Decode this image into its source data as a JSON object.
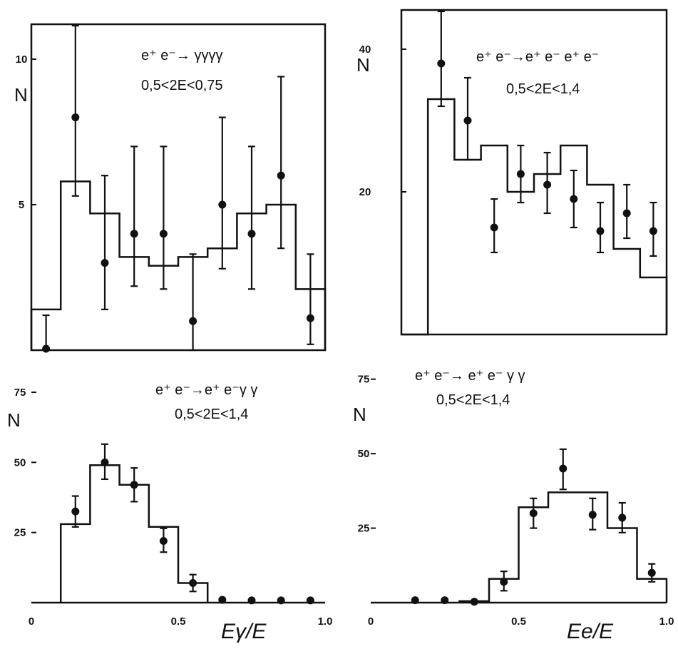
{
  "chart_data": [
    {
      "type": "histogram",
      "panel": "top-left",
      "ylabel": "N",
      "annotation": [
        "e⁺ e⁻→ γγγγ",
        "0,5<2E<0,75"
      ],
      "xlim": [
        0,
        1.0
      ],
      "ylim": [
        0,
        11.2
      ],
      "yticks": [
        {
          "v": 5,
          "label": "5"
        },
        {
          "v": 10,
          "label": "10"
        }
      ],
      "hist_edges": [
        0,
        0.1,
        0.2,
        0.3,
        0.4,
        0.5,
        0.6,
        0.7,
        0.8,
        0.9,
        1.0
      ],
      "hist_heights": [
        1.4,
        5.8,
        4.7,
        3.2,
        2.9,
        3.2,
        3.5,
        4.7,
        5.0,
        2.1
      ],
      "points": [
        {
          "x": 0.05,
          "y": 0.05,
          "lo": 0.0,
          "hi": 1.2
        },
        {
          "x": 0.15,
          "y": 8.0,
          "lo": 5.3,
          "hi": 11.2
        },
        {
          "x": 0.25,
          "y": 3.0,
          "lo": 1.4,
          "hi": 6.0
        },
        {
          "x": 0.35,
          "y": 4.0,
          "lo": 2.2,
          "hi": 7.0
        },
        {
          "x": 0.45,
          "y": 4.0,
          "lo": 2.1,
          "hi": 7.0
        },
        {
          "x": 0.55,
          "y": 1.0,
          "lo": 0.0,
          "hi": 3.3
        },
        {
          "x": 0.65,
          "y": 5.0,
          "lo": 2.8,
          "hi": 8.0
        },
        {
          "x": 0.75,
          "y": 4.0,
          "lo": 2.1,
          "hi": 7.0
        },
        {
          "x": 0.85,
          "y": 6.0,
          "lo": 3.5,
          "hi": 9.4
        },
        {
          "x": 0.95,
          "y": 1.1,
          "lo": 0.2,
          "hi": 3.3
        }
      ]
    },
    {
      "type": "histogram",
      "panel": "top-right",
      "ylabel": "N",
      "annotation": [
        "e⁺ e⁻→e⁺ e⁻ e⁺ e⁻",
        "0,5<2E<1,4"
      ],
      "xlim": [
        0,
        1.0
      ],
      "ylim": [
        0,
        45.5
      ],
      "yticks": [
        {
          "v": 20,
          "label": "20"
        },
        {
          "v": 40,
          "label": "40"
        }
      ],
      "hist_edges": [
        0,
        0.1,
        0.2,
        0.3,
        0.4,
        0.5,
        0.6,
        0.7,
        0.8,
        0.9,
        1.0
      ],
      "hist_edges_note": "",
      "hist_heights": [
        0,
        33.0,
        24.5,
        26.5,
        20.0,
        22.5,
        26.5,
        21.0,
        12.0,
        8.0
      ],
      "points": [
        {
          "x": 0.15,
          "y": 38.0,
          "lo": 32.0,
          "hi": 45.5
        },
        {
          "x": 0.25,
          "y": 30.0,
          "lo": 24.5,
          "hi": 36.0
        },
        {
          "x": 0.35,
          "y": 15.0,
          "lo": 11.5,
          "hi": 19.0
        },
        {
          "x": 0.45,
          "y": 22.5,
          "lo": 18.5,
          "hi": 26.5
        },
        {
          "x": 0.55,
          "y": 21.0,
          "lo": 17.0,
          "hi": 25.5
        },
        {
          "x": 0.65,
          "y": 19.0,
          "lo": 15.0,
          "hi": 23.0
        },
        {
          "x": 0.75,
          "y": 14.5,
          "lo": 11.5,
          "hi": 18.5
        },
        {
          "x": 0.85,
          "y": 17.0,
          "lo": 13.5,
          "hi": 21.0
        },
        {
          "x": 0.95,
          "y": 14.5,
          "lo": 11.0,
          "hi": 18.5
        }
      ]
    },
    {
      "type": "histogram",
      "panel": "bottom-left",
      "ylabel": "N",
      "annotation": [
        "e⁺ e⁻→e⁺ e⁻γ γ",
        "0,5<2E<1,4"
      ],
      "xlim": [
        0,
        1.0
      ],
      "xticks": [
        {
          "v": 0,
          "label": "0"
        },
        {
          "v": 0.5,
          "label": "0.5"
        },
        {
          "v": 1.0,
          "label": "1.0"
        }
      ],
      "xlabel": "Eγ/E",
      "ylim": [
        0,
        90
      ],
      "yticks": [
        {
          "v": 25,
          "label": "25"
        },
        {
          "v": 50,
          "label": "50"
        },
        {
          "v": 75,
          "label": "75"
        }
      ],
      "hist_edges": [
        0.1,
        0.2,
        0.3,
        0.4,
        0.5,
        0.6
      ],
      "hist_heights": [
        28.0,
        49.0,
        42.0,
        27.0,
        7.0
      ],
      "points": [
        {
          "x": 0.15,
          "y": 32.5,
          "lo": 27.0,
          "hi": 38.0
        },
        {
          "x": 0.25,
          "y": 50.0,
          "lo": 44.0,
          "hi": 56.5
        },
        {
          "x": 0.35,
          "y": 42.0,
          "lo": 36.0,
          "hi": 48.0
        },
        {
          "x": 0.45,
          "y": 22.0,
          "lo": 18.0,
          "hi": 26.5
        },
        {
          "x": 0.55,
          "y": 7.0,
          "lo": 4.0,
          "hi": 10.0
        },
        {
          "x": 0.65,
          "y": 1.0
        },
        {
          "x": 0.75,
          "y": 0.8
        },
        {
          "x": 0.85,
          "y": 0.8
        },
        {
          "x": 0.95,
          "y": 0.8
        }
      ]
    },
    {
      "type": "histogram",
      "panel": "bottom-right",
      "ylabel": "N",
      "annotation": [
        "e⁺ e⁻→ e⁺ e⁻ γ γ",
        "0,5<2E<1,4"
      ],
      "xlim": [
        0,
        1.0
      ],
      "xticks": [
        {
          "v": 0,
          "label": "0"
        },
        {
          "v": 0.5,
          "label": "0.5"
        },
        {
          "v": 1.0,
          "label": "1.0"
        }
      ],
      "xlabel": "Ee/E",
      "ylim": [
        0,
        90
      ],
      "yticks": [
        {
          "v": 25,
          "label": "25"
        },
        {
          "v": 50,
          "label": "50"
        },
        {
          "v": 75,
          "label": "75"
        }
      ],
      "hist_edges": [
        0.3,
        0.4,
        0.5,
        0.6,
        0.7,
        0.8,
        0.9,
        1.0
      ],
      "hist_heights": [
        0.5,
        8.0,
        32.0,
        37.0,
        37.0,
        25.0,
        8.0
      ],
      "points": [
        {
          "x": 0.15,
          "y": 0.8
        },
        {
          "x": 0.25,
          "y": 0.8
        },
        {
          "x": 0.35,
          "y": 0.3
        },
        {
          "x": 0.45,
          "y": 7.0,
          "lo": 4.0,
          "hi": 10.5
        },
        {
          "x": 0.55,
          "y": 30.0,
          "lo": 25.0,
          "hi": 35.0
        },
        {
          "x": 0.65,
          "y": 45.0,
          "lo": 38.0,
          "hi": 51.5
        },
        {
          "x": 0.75,
          "y": 29.5,
          "lo": 24.5,
          "hi": 35.0
        },
        {
          "x": 0.85,
          "y": 28.5,
          "lo": 23.5,
          "hi": 33.5
        },
        {
          "x": 0.95,
          "y": 10.0,
          "lo": 7.0,
          "hi": 13.0
        }
      ]
    }
  ]
}
